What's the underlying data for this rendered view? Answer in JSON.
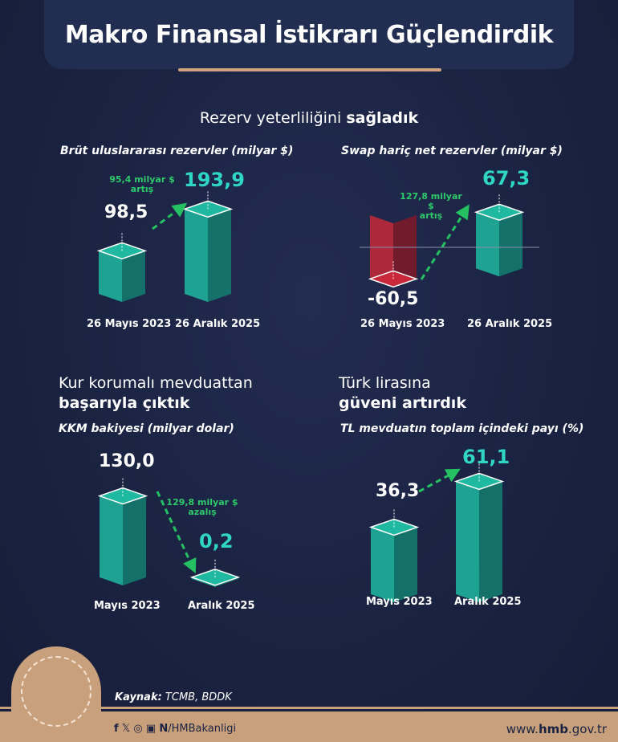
{
  "header": {
    "title": "Makro Finansal İstikrarı Güçlendirdik"
  },
  "section1": {
    "title_normal": "Rezerv yeterliliğini ",
    "title_bold": "sağladık"
  },
  "section3": {
    "line1": "Kur korumalı mevduattan",
    "line2": "başarıyla çıktık"
  },
  "section4": {
    "line1": "Türk lirasına",
    "line2": "güveni artırdık"
  },
  "colors": {
    "decrease_bar": "#c8283a",
    "increase_bar": "#1fb8a0",
    "arrow": "#25c062",
    "background": "#1a2342",
    "accent": "#c9a07c"
  },
  "chart_data": [
    {
      "type": "bar",
      "title": "Brüt uluslararası rezervler (milyar $)",
      "categories": [
        "26 Mayıs 2023",
        "26 Aralık 2025"
      ],
      "values": [
        98.5,
        193.9
      ],
      "labels": [
        "98,5",
        "193,9"
      ],
      "annotation": {
        "line1": "95,4 milyar $",
        "line2": "artış"
      }
    },
    {
      "type": "bar",
      "title": "Swap hariç net rezervler (milyar $)",
      "categories": [
        "26 Mayıs 2023",
        "26 Aralık 2025"
      ],
      "values": [
        -60.5,
        67.3
      ],
      "labels": [
        "-60,5",
        "67,3"
      ],
      "annotation": {
        "line1": "127,8 milyar $",
        "line2": "artış"
      }
    },
    {
      "type": "bar",
      "title": "KKM bakiyesi (milyar dolar)",
      "categories": [
        "Mayıs 2023",
        "Aralık 2025"
      ],
      "values": [
        130.0,
        0.2
      ],
      "labels": [
        "130,0",
        "0,2"
      ],
      "annotation": {
        "line1": "129,8 milyar $",
        "line2": "azalış"
      }
    },
    {
      "type": "bar",
      "title": "TL mevduatın toplam içindeki payı (%)",
      "categories": [
        "Mayıs 2023",
        "Aralık 2025"
      ],
      "values": [
        36.3,
        61.1
      ],
      "labels": [
        "36,3",
        "61,1"
      ]
    }
  ],
  "footer": {
    "source_label": "Kaynak:",
    "source": " TCMB, BDDK",
    "social_icons": [
      "facebook-icon",
      "x-icon",
      "instagram-icon",
      "youtube-icon",
      "nsosyal-icon"
    ],
    "handle": "/HMBakanligi",
    "web_prefix": "www.",
    "web_bold": "hmb",
    "web_suffix": ".gov.tr"
  }
}
